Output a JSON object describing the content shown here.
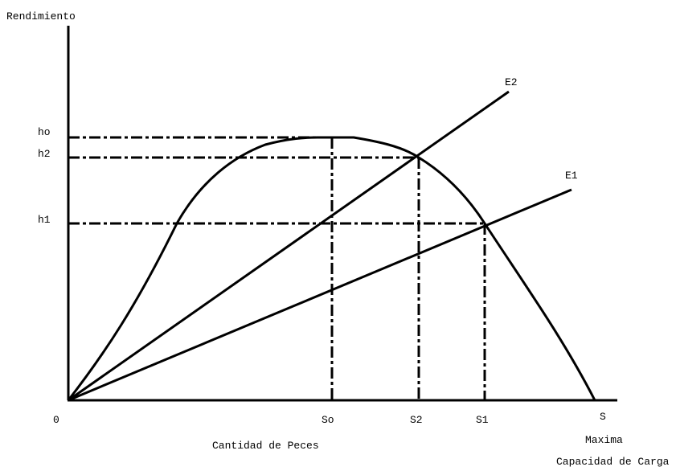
{
  "axes": {
    "y_label": "Rendimiento",
    "x_label": "Cantidad de Peces",
    "origin": "0"
  },
  "y_levels": [
    "ho",
    "h2",
    "h1"
  ],
  "x_levels": [
    "So",
    "S2",
    "S1",
    "S"
  ],
  "lines": [
    "E2",
    "E1"
  ],
  "max_capacity": [
    "Maxima",
    "Capacidad de Carga"
  ]
}
